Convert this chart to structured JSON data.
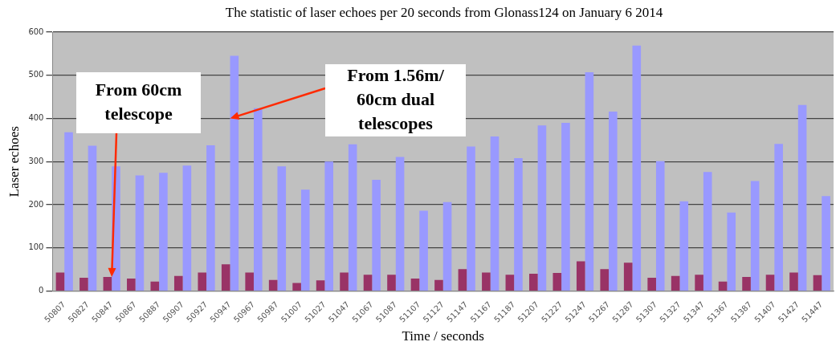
{
  "chart_data": {
    "type": "bar",
    "title": "The statistic of laser echoes per 20 seconds from Glonass124 on January 6 2014",
    "xlabel": "Time / seconds",
    "ylabel": "Laser echoes",
    "categories": [
      "50807",
      "50827",
      "50847",
      "50867",
      "50887",
      "50907",
      "50927",
      "50947",
      "50967",
      "50987",
      "51007",
      "51027",
      "51047",
      "51067",
      "51087",
      "51107",
      "51127",
      "51147",
      "51167",
      "51187",
      "51207",
      "51227",
      "51247",
      "51267",
      "51287",
      "51307",
      "51327",
      "51347",
      "51367",
      "51387",
      "51407",
      "51427",
      "51447"
    ],
    "series": [
      {
        "color": "#993366",
        "values": [
          43,
          31,
          33,
          29,
          22,
          35,
          43,
          62,
          43,
          26,
          19,
          25,
          43,
          38,
          38,
          29,
          26,
          51,
          43,
          38,
          40,
          42,
          69,
          51,
          66,
          31,
          35,
          38,
          22,
          33,
          38,
          43,
          37
        ]
      },
      {
        "color": "#9999ff",
        "values": [
          368,
          337,
          289,
          268,
          274,
          291,
          338,
          545,
          424,
          289,
          235,
          300,
          340,
          258,
          311,
          186,
          206,
          335,
          358,
          308,
          384,
          390,
          507,
          416,
          569,
          301,
          208,
          276,
          182,
          255,
          341,
          431,
          220
        ]
      }
    ],
    "ylim": [
      0,
      600
    ],
    "yticks": [
      0,
      100,
      200,
      300,
      400,
      500,
      600
    ],
    "grid": "y",
    "legend": false,
    "annotations": [
      {
        "text": "From 60cm telescope",
        "x": "50847",
        "y": 33
      },
      {
        "text": "From 1.56m/60cm dual telescopes",
        "x": "50947",
        "y": 400
      }
    ]
  }
}
